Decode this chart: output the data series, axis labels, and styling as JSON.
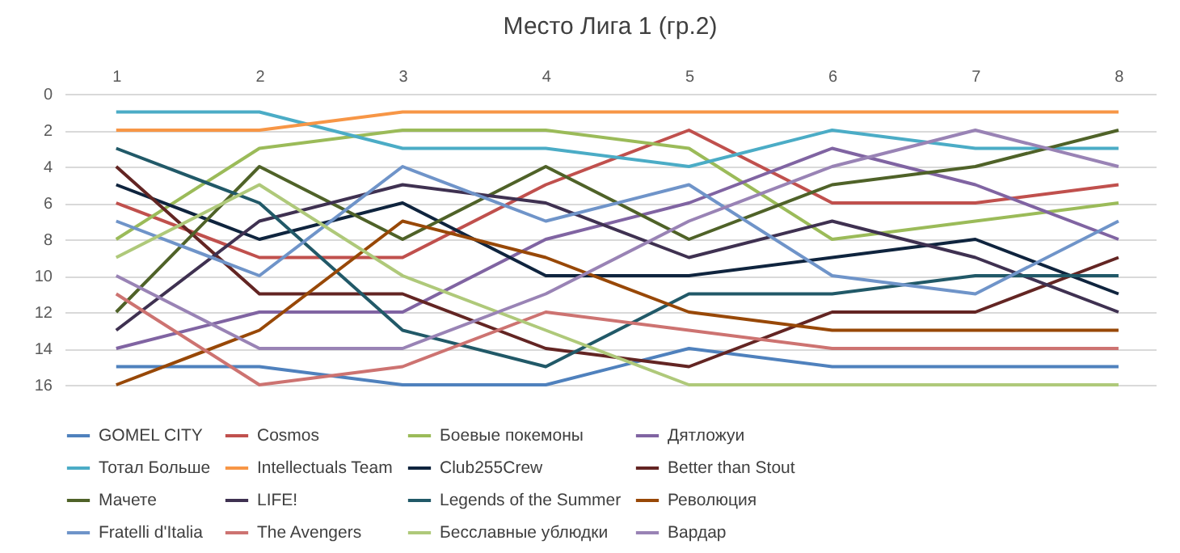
{
  "chart_data": {
    "type": "line",
    "title": "Место Лига 1 (гр.2)",
    "categories": [
      "1",
      "2",
      "3",
      "4",
      "5",
      "6",
      "7",
      "8"
    ],
    "ylim": [
      16,
      0
    ],
    "yticks": [
      0,
      2,
      4,
      6,
      8,
      10,
      12,
      14,
      16
    ],
    "grid": "y",
    "legend": "bottom",
    "marker": "none",
    "line_style": "solid",
    "series": [
      {
        "name": "GOMEL CITY",
        "color": "#4f81bd",
        "values": [
          15,
          15,
          16,
          16,
          14,
          15,
          15,
          15
        ]
      },
      {
        "name": "Cosmos",
        "color": "#c0504d",
        "values": [
          6,
          9,
          9,
          5,
          2,
          6,
          6,
          5
        ]
      },
      {
        "name": "Боевые покемоны",
        "color": "#9bbb59",
        "values": [
          8,
          3,
          2,
          2,
          3,
          8,
          7,
          6
        ]
      },
      {
        "name": "Дятложуи",
        "color": "#8064a2",
        "values": [
          14,
          12,
          12,
          8,
          6,
          3,
          5,
          8
        ]
      },
      {
        "name": "Тотал Больше",
        "color": "#4bacc6",
        "values": [
          1,
          1,
          3,
          3,
          4,
          2,
          3,
          3
        ]
      },
      {
        "name": "Intellectuals Team",
        "color": "#f79646",
        "values": [
          2,
          2,
          1,
          1,
          1,
          1,
          1,
          1
        ]
      },
      {
        "name": "Club255Crew",
        "color": "#0f243e",
        "values": [
          5,
          8,
          6,
          10,
          10,
          9,
          8,
          11
        ]
      },
      {
        "name": "Better than Stout",
        "color": "#632523",
        "values": [
          4,
          11,
          11,
          14,
          15,
          12,
          12,
          9
        ]
      },
      {
        "name": "Мачете",
        "color": "#4f6228",
        "values": [
          12,
          4,
          8,
          4,
          8,
          5,
          4,
          2
        ]
      },
      {
        "name": "LIFE!",
        "color": "#3f3151",
        "values": [
          13,
          7,
          5,
          6,
          9,
          7,
          9,
          12
        ]
      },
      {
        "name": "Legends of the Summer",
        "color": "#215968",
        "values": [
          3,
          6,
          13,
          15,
          11,
          11,
          10,
          10
        ]
      },
      {
        "name": "Революция",
        "color": "#984807",
        "values": [
          16,
          13,
          7,
          9,
          12,
          13,
          13,
          13
        ]
      },
      {
        "name": "Fratelli d'Italia",
        "color": "#6f94c9",
        "values": [
          7,
          10,
          4,
          7,
          5,
          10,
          11,
          7
        ]
      },
      {
        "name": "The Avengers",
        "color": "#cd7371",
        "values": [
          11,
          16,
          15,
          12,
          13,
          14,
          14,
          14
        ]
      },
      {
        "name": "Бесславные ублюдки",
        "color": "#afc97a",
        "values": [
          9,
          5,
          10,
          13,
          16,
          16,
          16,
          16
        ]
      },
      {
        "name": "Вардар",
        "color": "#9983b5",
        "values": [
          10,
          14,
          14,
          11,
          7,
          4,
          2,
          4
        ]
      }
    ]
  }
}
